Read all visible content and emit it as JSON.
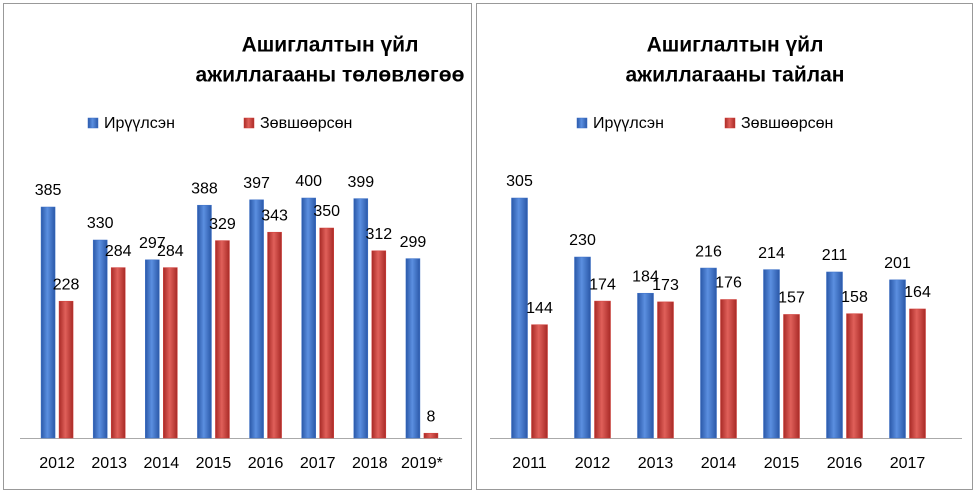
{
  "chart_data": [
    {
      "type": "bar",
      "title": [
        "Ашиглалтын үйл",
        "ажиллагааны төлөвлөгөө"
      ],
      "categories": [
        "2012",
        "2013",
        "2014",
        "2015",
        "2016",
        "2017",
        "2018",
        "2019*"
      ],
      "series": [
        {
          "name": "Ирүүлсэн",
          "color": "#3a6ec6",
          "values": [
            385,
            330,
            297,
            388,
            397,
            400,
            399,
            299
          ]
        },
        {
          "name": "Зөвшөөрсөн",
          "color": "#d03a35",
          "values": [
            228,
            284,
            284,
            329,
            343,
            350,
            312,
            8
          ]
        }
      ]
    },
    {
      "type": "bar",
      "title": [
        "Ашиглалтын үйл",
        "ажиллагааны тайлан"
      ],
      "categories": [
        "2011",
        "2012",
        "2013",
        "2014",
        "2015",
        "2016",
        "2017"
      ],
      "series": [
        {
          "name": "Ирүүлсэн",
          "color": "#3a6ec6",
          "values": [
            305,
            230,
            184,
            216,
            214,
            211,
            201
          ]
        },
        {
          "name": "Зөвшөөрсөн",
          "color": "#d03a35",
          "values": [
            144,
            174,
            173,
            176,
            157,
            158,
            164
          ]
        }
      ]
    }
  ]
}
